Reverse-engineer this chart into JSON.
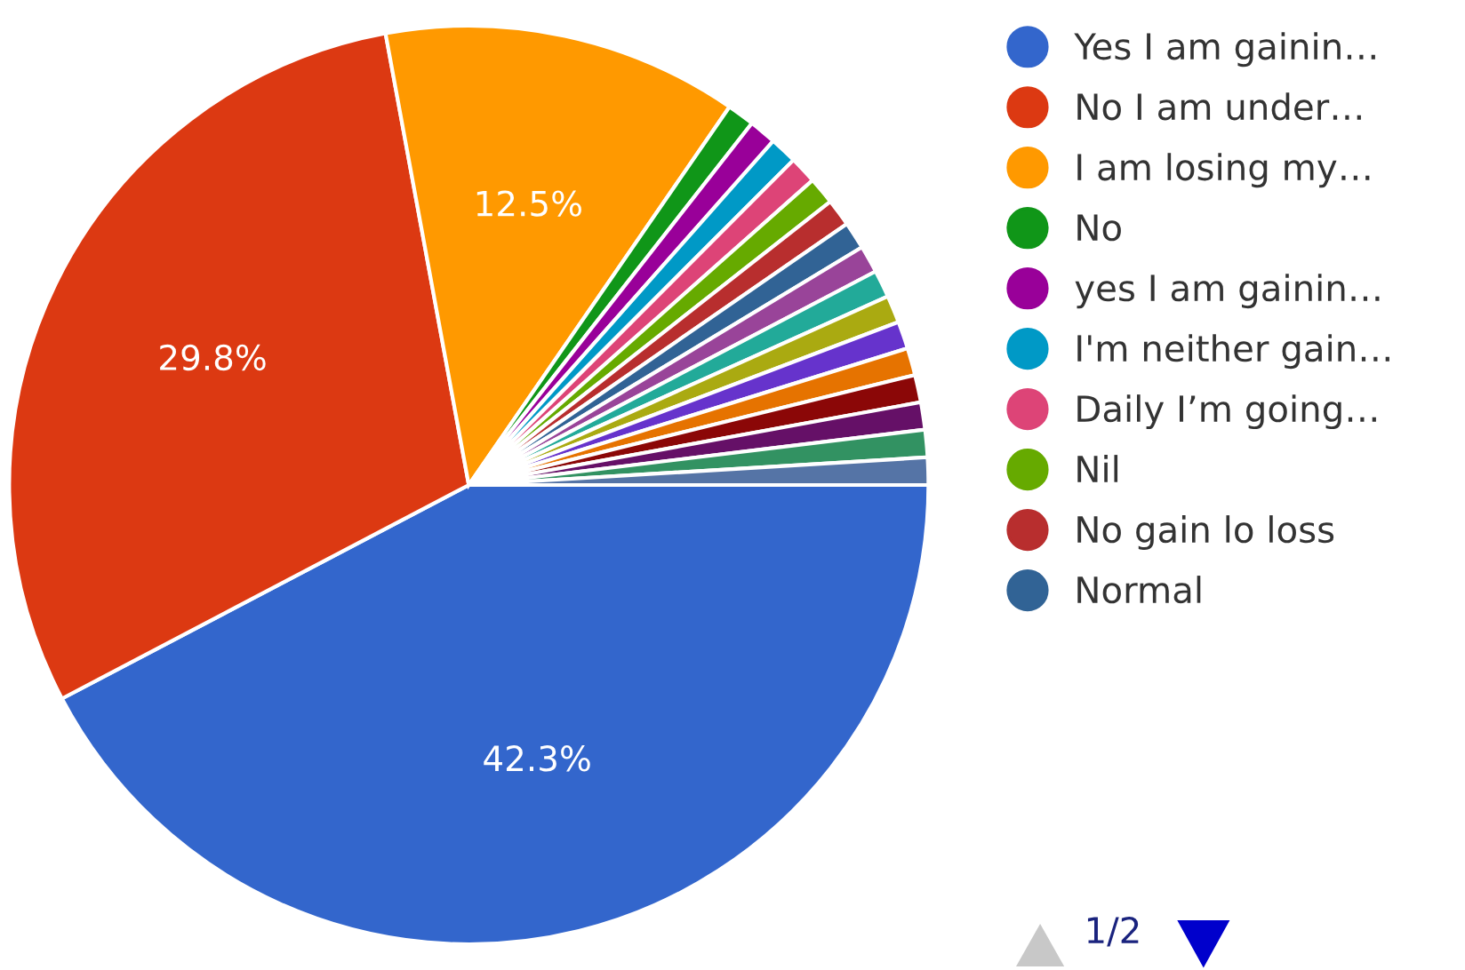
{
  "chart_data": {
    "type": "pie",
    "categories": [
      "Yes I am gainin…",
      "No I am under…",
      "I am losing my…",
      "No",
      "yes I am gainin…",
      "I'm neither gain…",
      "Daily I’m going…",
      "Nil",
      "No gain lo loss",
      "Normal",
      null,
      null,
      null,
      null,
      null,
      null,
      null,
      null,
      null
    ],
    "values": [
      42.3,
      29.8,
      12.5,
      0.9625,
      0.9625,
      0.9625,
      0.9625,
      0.9625,
      0.9625,
      0.9625,
      0.9625,
      0.9625,
      0.9625,
      0.9625,
      0.9625,
      0.9625,
      0.9625,
      0.9625,
      0.9625
    ],
    "colors": [
      "#3366cc",
      "#dc3912",
      "#ff9900",
      "#109618",
      "#990099",
      "#0099c6",
      "#dd4477",
      "#66aa00",
      "#b82e2e",
      "#316395",
      "#994499",
      "#22aa99",
      "#aaaa11",
      "#6633cc",
      "#e67300",
      "#8b0707",
      "#651067",
      "#329262",
      "#5574a6"
    ],
    "value_labels": [
      "42.3%",
      "29.8%",
      "12.5%",
      null,
      null,
      null,
      null,
      null,
      null,
      null,
      null,
      null,
      null,
      null,
      null,
      null,
      null,
      null,
      null
    ],
    "legend": "right",
    "annotations": [
      "1/2"
    ]
  }
}
